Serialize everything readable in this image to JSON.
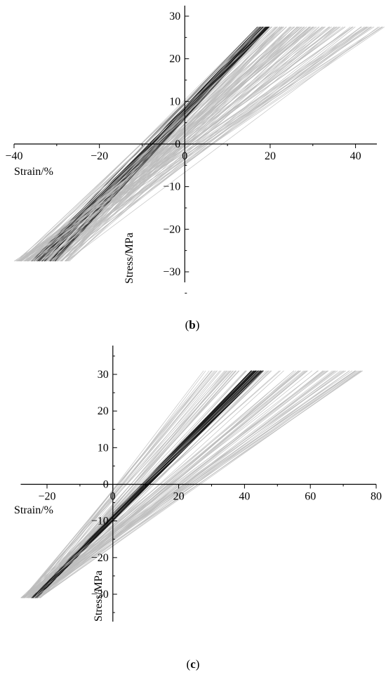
{
  "chart_data": [
    {
      "type": "line",
      "panel_label": "b",
      "xlabel": "Strain/%",
      "ylabel": "Stress/MPa",
      "xlim": [
        -40,
        45
      ],
      "ylim": [
        -32,
        32
      ],
      "xticks": [
        -40,
        -20,
        0,
        20,
        40
      ],
      "yticks": [
        -30,
        -20,
        -10,
        0,
        10,
        20,
        30
      ],
      "xtick_labels": [
        "−40",
        "−20",
        "0",
        "20",
        "40"
      ],
      "ytick_labels": [
        "−30",
        "−20",
        "−10",
        "0",
        "10",
        "20",
        "30"
      ],
      "grid": false,
      "legend": "none",
      "series_summary": {
        "count": 160,
        "description_colors": [
          "#000000",
          "#bdbdbd"
        ],
        "y_range": [
          -27.5,
          27.5
        ],
        "x_at_y_min": [
          -40,
          -27
        ],
        "x_at_y_max": [
          17,
          47
        ],
        "dark_bundle": {
          "x_at_y_min": [
            -36,
            -30
          ],
          "x_at_y_max": [
            17,
            20
          ]
        }
      }
    },
    {
      "type": "line",
      "panel_label": "c",
      "xlabel": "Strain/%",
      "ylabel": "Stress/MPa",
      "xlim": [
        -28,
        80
      ],
      "ylim": [
        -38,
        38
      ],
      "xticks": [
        -20,
        0,
        20,
        40,
        60,
        80
      ],
      "yticks": [
        -30,
        -20,
        -10,
        0,
        10,
        20,
        30
      ],
      "xtick_labels": [
        "−20",
        "0",
        "20",
        "40",
        "60",
        "80"
      ],
      "ytick_labels": [
        "−30",
        "−20",
        "−10",
        "0",
        "10",
        "20",
        "30"
      ],
      "grid": false,
      "legend": "none",
      "series_summary": {
        "count": 160,
        "description_colors": [
          "#000000",
          "#bdbdbd"
        ],
        "y_range": [
          -31,
          31
        ],
        "x_at_y_min": [
          -28,
          -22
        ],
        "x_at_y_max": [
          27,
          76
        ],
        "dark_bundle": {
          "x_at_y_min": [
            -25,
            -23
          ],
          "x_at_y_max": [
            42,
            46
          ]
        }
      }
    }
  ],
  "captions": {
    "b": "b",
    "c": "c"
  }
}
